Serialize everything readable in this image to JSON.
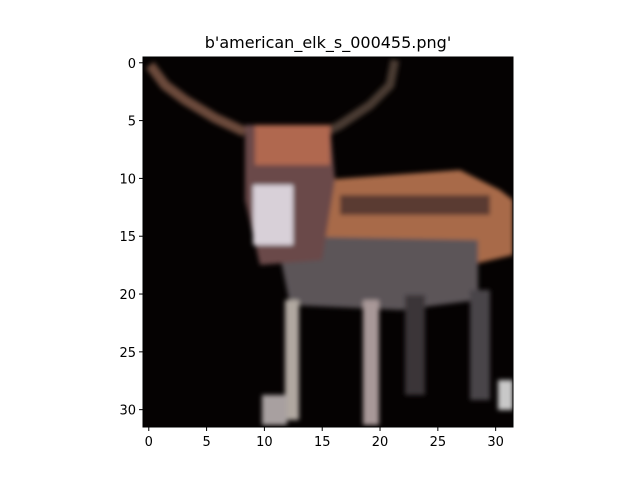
{
  "chart_data": {
    "type": "image",
    "title": "b'american_elk_s_000455.png'",
    "xlim": [
      -0.5,
      31.5
    ],
    "ylim": [
      31.5,
      -0.5
    ],
    "xticks": [
      0,
      5,
      10,
      15,
      20,
      25,
      30
    ],
    "yticks": [
      0,
      5,
      10,
      15,
      20,
      25,
      30
    ]
  }
}
